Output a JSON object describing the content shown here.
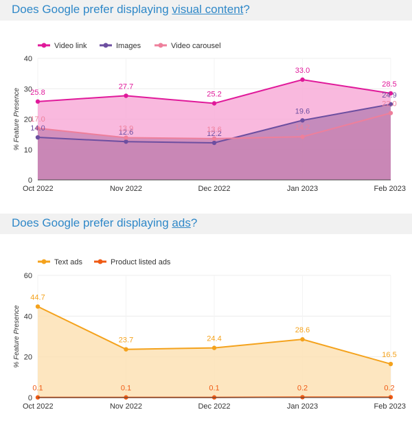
{
  "sections": [
    {
      "title_prefix": "Does Google prefer displaying ",
      "title_link": "visual content",
      "title_suffix": "?"
    },
    {
      "title_prefix": "Does Google prefer displaying ",
      "title_link": "ads",
      "title_suffix": "?"
    }
  ],
  "chart_data": [
    {
      "type": "area",
      "ylabel": "% Feature Presence",
      "ylim": [
        0,
        40
      ],
      "yticks": [
        0,
        10,
        20,
        30,
        40
      ],
      "categories": [
        "Oct 2022",
        "Nov 2022",
        "Dec 2022",
        "Jan 2023",
        "Feb 2023"
      ],
      "legend_position": "top-left",
      "grid": true,
      "series": [
        {
          "name": "Video link",
          "color": "#e0199a",
          "fill": "#f7a8d6",
          "values": [
            25.8,
            27.7,
            25.2,
            33.0,
            28.5
          ]
        },
        {
          "name": "Images",
          "color": "#6c4ea0",
          "fill": "#b87fb3",
          "values": [
            14.0,
            12.6,
            12.2,
            19.6,
            24.9
          ]
        },
        {
          "name": "Video carousel",
          "color": "#ee7f9b",
          "fill": "#c986b4",
          "values": [
            17.0,
            13.9,
            13.6,
            14.2,
            22.0
          ]
        }
      ]
    },
    {
      "type": "area",
      "ylabel": "% Feature Presence",
      "ylim": [
        0,
        60
      ],
      "yticks": [
        0,
        20,
        40,
        60
      ],
      "categories": [
        "Oct 2022",
        "Nov 2022",
        "Dec 2022",
        "Jan 2023",
        "Feb 2023"
      ],
      "legend_position": "top-left",
      "grid": true,
      "series": [
        {
          "name": "Text ads",
          "color": "#f4a21c",
          "fill": "#fde0b0",
          "values": [
            44.7,
            23.7,
            24.4,
            28.6,
            16.5
          ]
        },
        {
          "name": "Product listed ads",
          "color": "#ef5a14",
          "fill": "#f7b48e",
          "values": [
            0.1,
            0.1,
            0.1,
            0.2,
            0.2
          ]
        }
      ]
    }
  ]
}
